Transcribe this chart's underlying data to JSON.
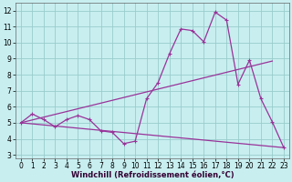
{
  "xlabel": "Windchill (Refroidissement éolien,°C)",
  "xlim": [
    -0.5,
    23.5
  ],
  "ylim": [
    2.8,
    12.5
  ],
  "xticks": [
    0,
    1,
    2,
    3,
    4,
    5,
    6,
    7,
    8,
    9,
    10,
    11,
    12,
    13,
    14,
    15,
    16,
    17,
    18,
    19,
    20,
    21,
    22,
    23
  ],
  "yticks": [
    3,
    4,
    5,
    6,
    7,
    8,
    9,
    10,
    11,
    12
  ],
  "bg_color": "#c8eef0",
  "grid_color": "#99cccc",
  "line_color": "#993399",
  "line1_x": [
    0,
    1,
    2,
    3,
    4,
    5,
    6,
    7,
    8,
    9,
    10,
    11,
    12,
    13,
    14,
    15,
    16,
    17,
    18,
    19,
    20,
    21,
    22,
    23
  ],
  "line1_y": [
    5.0,
    5.55,
    5.2,
    4.75,
    5.2,
    5.45,
    5.2,
    4.5,
    4.4,
    3.7,
    3.85,
    6.5,
    7.5,
    9.3,
    10.85,
    10.75,
    10.05,
    11.9,
    11.4,
    7.4,
    8.9,
    6.5,
    5.05,
    3.45
  ],
  "line2_x": [
    0,
    22
  ],
  "line2_y": [
    5.0,
    8.85
  ],
  "line3_x": [
    0,
    23
  ],
  "line3_y": [
    5.0,
    3.45
  ],
  "xlabel_fontsize": 6,
  "tick_fontsize": 5.5
}
